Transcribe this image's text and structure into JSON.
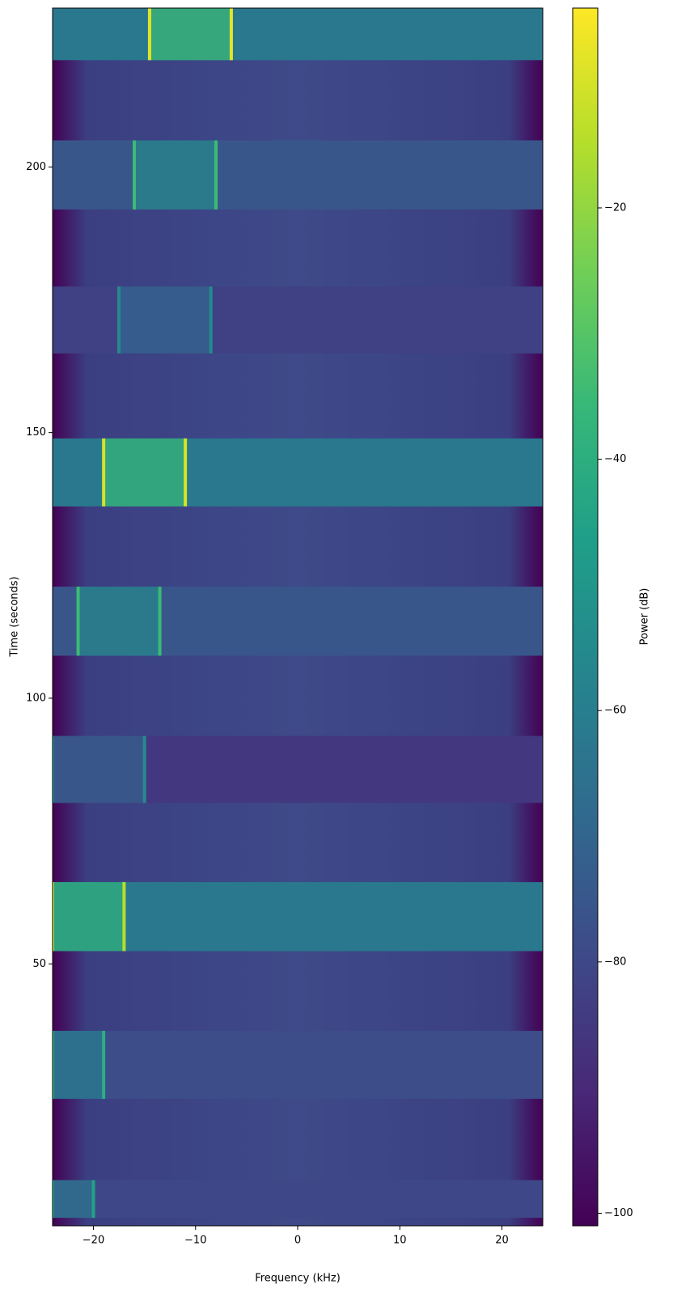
{
  "chart_data": {
    "type": "spectrogram",
    "xlabel": "Frequency (kHz)",
    "ylabel": "Time (seconds)",
    "colorbar_label": "Power (dB)",
    "xlim": [
      -24,
      24
    ],
    "ylim": [
      0.7,
      229.9
    ],
    "clim": [
      -101,
      -4.1
    ],
    "xticks": [
      {
        "value": -20,
        "label": "−20"
      },
      {
        "value": -10,
        "label": "−10"
      },
      0,
      10,
      20
    ],
    "yticks": [
      50,
      100,
      150,
      200
    ],
    "cticks": [
      {
        "value": -20,
        "label": "−20"
      },
      {
        "value": -40,
        "label": "−40"
      },
      {
        "value": -60,
        "label": "−60"
      },
      {
        "value": -80,
        "label": "−80"
      },
      {
        "value": -100,
        "label": "−100"
      }
    ],
    "colormap": "viridis",
    "bursts": [
      {
        "t0": 220.1,
        "t1": 229.9,
        "f0": -14.5,
        "f1": -6.5,
        "floor": -62,
        "peak": -8
      },
      {
        "t0": 192,
        "t1": 205,
        "f0": -16,
        "f1": -8,
        "floor": -75,
        "peak": -35
      },
      {
        "t0": 164.9,
        "t1": 177.5,
        "f0": -17.5,
        "f1": -8.5,
        "floor": -82,
        "peak": -55
      },
      {
        "t0": 136.1,
        "t1": 148.9,
        "f0": -19,
        "f1": -11,
        "floor": -62,
        "peak": -10
      },
      {
        "t0": 108,
        "t1": 121,
        "f0": -21.5,
        "f1": -13.5,
        "floor": -75,
        "peak": -35
      },
      {
        "t0": 80.3,
        "t1": 92.9,
        "f0": -24,
        "f1": -15,
        "floor": -85,
        "peak": -55
      },
      {
        "t0": 52.4,
        "t1": 65.4,
        "f0": -24,
        "f1": -17,
        "floor": -62,
        "peak": -15
      },
      {
        "t0": 24.6,
        "t1": 37.4,
        "f0": -24,
        "f1": -19,
        "floor": -78,
        "peak": -40
      },
      {
        "t0": 2.2,
        "t1": 9.3,
        "f0": -24,
        "f1": -20,
        "floor": -80,
        "peak": -45
      }
    ]
  }
}
